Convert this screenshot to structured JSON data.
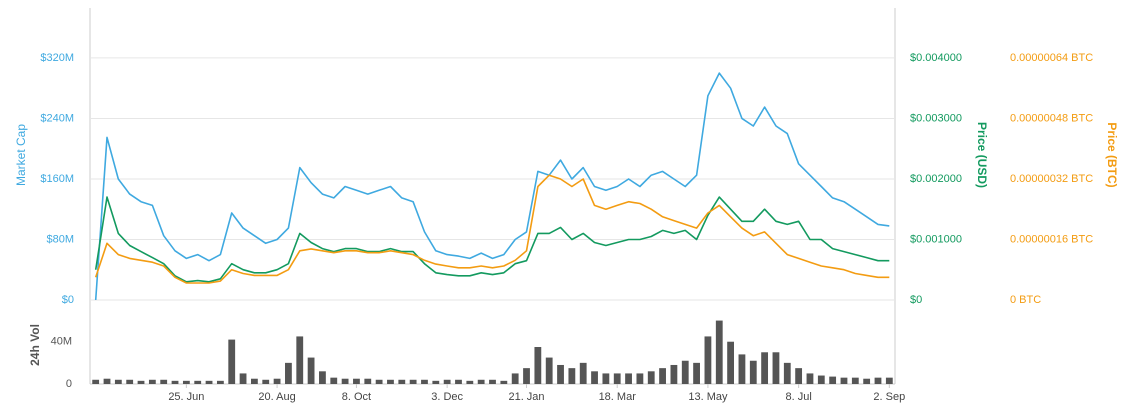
{
  "chart_data": {
    "type": "line",
    "ylabel": "Market Cap",
    "y2label": "Price (USD)",
    "y3label": "Price (BTC)",
    "categories": [
      null,
      null,
      null,
      null,
      null,
      null,
      null,
      null,
      "25. Jun",
      null,
      null,
      null,
      null,
      null,
      null,
      null,
      "20. Aug",
      null,
      null,
      null,
      null,
      null,
      null,
      "8. Oct",
      null,
      null,
      null,
      null,
      null,
      null,
      null,
      "3. Dec",
      null,
      null,
      null,
      null,
      null,
      null,
      "21. Jan",
      null,
      null,
      null,
      null,
      null,
      null,
      null,
      "18. Mar",
      null,
      null,
      null,
      null,
      null,
      null,
      null,
      "13. May",
      null,
      null,
      null,
      null,
      null,
      null,
      null,
      "8. Jul",
      null,
      null,
      null,
      null,
      null,
      null,
      null,
      "2. Sep"
    ],
    "ylim": [
      0,
      386
    ],
    "yticks": [
      {
        "value": 0,
        "label": "$0"
      },
      {
        "value": 80,
        "label": "$80M"
      },
      {
        "value": 160,
        "label": "$160M"
      },
      {
        "value": 240,
        "label": "$240M"
      },
      {
        "value": 320,
        "label": "$320M"
      }
    ],
    "y2lim": [
      0,
      0.004825
    ],
    "y2ticks": [
      {
        "value": 0,
        "label": "$0"
      },
      {
        "value": 0.001,
        "label": "$0.001000"
      },
      {
        "value": 0.002,
        "label": "$0.002000"
      },
      {
        "value": 0.003,
        "label": "$0.003000"
      },
      {
        "value": 0.004,
        "label": "$0.004000"
      }
    ],
    "y3lim": [
      0,
      7.72e-07
    ],
    "y3ticks": [
      {
        "value": 0,
        "label": "0 BTC"
      },
      {
        "value": 1.6e-07,
        "label": "0.00000016 BTC"
      },
      {
        "value": 3.2e-07,
        "label": "0.00000032 BTC"
      },
      {
        "value": 4.8e-07,
        "label": "0.00000048 BTC"
      },
      {
        "value": 6.4e-07,
        "label": "0.00000064 BTC"
      }
    ],
    "grid": true,
    "series": [
      {
        "color": "#3fa9e0",
        "axis": "y",
        "values": [
          0,
          215,
          160,
          140,
          130,
          125,
          85,
          65,
          55,
          60,
          52,
          60,
          115,
          95,
          85,
          75,
          80,
          95,
          175,
          155,
          140,
          135,
          150,
          145,
          140,
          145,
          150,
          135,
          130,
          90,
          65,
          60,
          58,
          55,
          62,
          55,
          60,
          80,
          90,
          170,
          165,
          185,
          160,
          175,
          150,
          145,
          150,
          160,
          150,
          165,
          170,
          160,
          150,
          165,
          270,
          300,
          280,
          240,
          230,
          255,
          230,
          220,
          180,
          165,
          150,
          135,
          130,
          120,
          110,
          100,
          98
        ]
      },
      {
        "color": "#139a5f",
        "axis": "y2",
        "values": [
          0.0005,
          0.0017,
          0.0011,
          0.0009,
          0.0008,
          0.0007,
          0.0006,
          0.0004,
          0.0003,
          0.00032,
          0.0003,
          0.00035,
          0.0006,
          0.0005,
          0.00045,
          0.00045,
          0.0005,
          0.0006,
          0.0011,
          0.00095,
          0.00085,
          0.0008,
          0.00085,
          0.00085,
          0.0008,
          0.0008,
          0.00085,
          0.0008,
          0.0008,
          0.0006,
          0.00045,
          0.00042,
          0.0004,
          0.0004,
          0.00045,
          0.00042,
          0.00045,
          0.0006,
          0.00065,
          0.0011,
          0.0011,
          0.0012,
          0.001,
          0.0011,
          0.00095,
          0.0009,
          0.00095,
          0.001,
          0.001,
          0.00105,
          0.00115,
          0.0011,
          0.00115,
          0.001,
          0.0014,
          0.0017,
          0.0015,
          0.0013,
          0.0013,
          0.0015,
          0.0013,
          0.00125,
          0.0013,
          0.001,
          0.001,
          0.00085,
          0.0008,
          0.00075,
          0.0007,
          0.00065,
          0.00065
        ]
      },
      {
        "color": "#f39c12",
        "axis": "y3",
        "values": [
          6e-08,
          1.5e-07,
          1.2e-07,
          1.1e-07,
          1.05e-07,
          1e-07,
          9e-08,
          6e-08,
          4.5e-08,
          4.5e-08,
          4.5e-08,
          5e-08,
          8e-08,
          7e-08,
          6.5e-08,
          6.5e-08,
          6.5e-08,
          8e-08,
          1.3e-07,
          1.35e-07,
          1.3e-07,
          1.25e-07,
          1.3e-07,
          1.3e-07,
          1.25e-07,
          1.25e-07,
          1.3e-07,
          1.25e-07,
          1.2e-07,
          1.05e-07,
          9.5e-08,
          9e-08,
          8.5e-08,
          8.5e-08,
          9e-08,
          8.5e-08,
          9e-08,
          1.05e-07,
          1.3e-07,
          3e-07,
          3.3e-07,
          3.2e-07,
          3e-07,
          3.2e-07,
          2.5e-07,
          2.4e-07,
          2.5e-07,
          2.6e-07,
          2.55e-07,
          2.4e-07,
          2.2e-07,
          2.1e-07,
          2e-07,
          1.9e-07,
          2.3e-07,
          2.5e-07,
          2.2e-07,
          1.9e-07,
          1.7e-07,
          1.8e-07,
          1.5e-07,
          1.2e-07,
          1.1e-07,
          1e-07,
          9e-08,
          8.5e-08,
          8e-08,
          7e-08,
          6.5e-08,
          6e-08,
          6e-08
        ]
      }
    ],
    "volume": {
      "label": "24h Vol",
      "color": "#555555",
      "ylim": [
        0,
        70
      ],
      "yticks": [
        0,
        {
          "value": 40,
          "label": "40M"
        }
      ],
      "values": [
        4,
        5,
        4,
        4,
        3,
        4,
        4,
        3,
        3,
        3,
        3,
        3,
        42,
        10,
        5,
        4,
        5,
        20,
        45,
        25,
        12,
        6,
        5,
        5,
        5,
        4,
        4,
        4,
        4,
        4,
        3,
        4,
        4,
        3,
        4,
        4,
        3,
        10,
        15,
        35,
        25,
        18,
        15,
        20,
        12,
        10,
        10,
        10,
        10,
        12,
        15,
        18,
        22,
        20,
        45,
        60,
        40,
        28,
        22,
        30,
        30,
        20,
        15,
        10,
        8,
        7,
        6,
        6,
        5,
        6,
        6
      ]
    }
  }
}
